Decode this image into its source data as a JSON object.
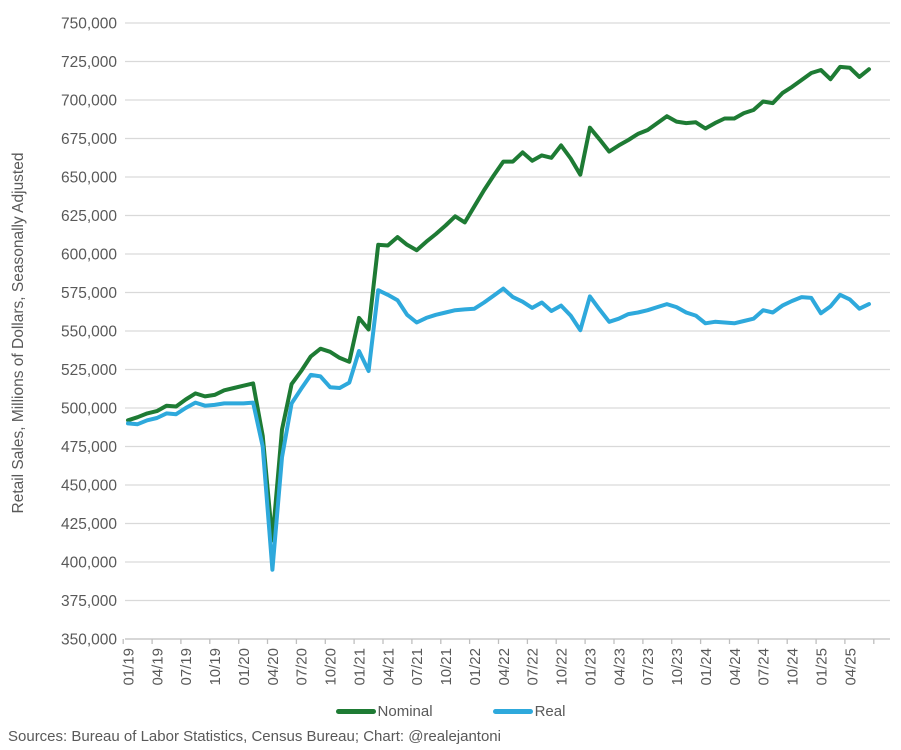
{
  "chart_data": {
    "type": "line",
    "title": "",
    "xlabel": "",
    "ylabel": "Retail Sales, Millions of Dollars, Seasonally Adjusted",
    "ylim": [
      350000,
      750000
    ],
    "y_tick_step": 25000,
    "y_tick_labels": [
      "350,000",
      "375,000",
      "400,000",
      "425,000",
      "450,000",
      "475,000",
      "500,000",
      "525,000",
      "550,000",
      "575,000",
      "600,000",
      "625,000",
      "650,000",
      "675,000",
      "700,000",
      "725,000",
      "750,000"
    ],
    "x_tick_labels": [
      "01/19",
      "04/19",
      "07/19",
      "10/19",
      "01/20",
      "04/20",
      "07/20",
      "10/20",
      "01/21",
      "04/21",
      "07/21",
      "10/21",
      "01/22",
      "04/22",
      "07/22",
      "10/22",
      "01/23",
      "04/23",
      "07/23",
      "10/23",
      "01/24",
      "04/24",
      "07/24",
      "10/24",
      "01/25",
      "04/25"
    ],
    "x_tick_every_n_points": 3,
    "n_points": 78,
    "grid": "horizontal",
    "legend_position": "bottom",
    "series": [
      {
        "name": "Nominal",
        "color": "#1e7b34",
        "values": [
          492000,
          494000,
          496500,
          498000,
          501500,
          501000,
          505500,
          509500,
          507500,
          508500,
          511500,
          513000,
          514500,
          516000,
          482000,
          414000,
          486000,
          515500,
          524000,
          533500,
          538500,
          536500,
          532500,
          530000,
          558500,
          551000,
          606000,
          605500,
          611000,
          606000,
          602500,
          608000,
          613000,
          618500,
          624500,
          620500,
          631000,
          641500,
          651000,
          660000,
          660000,
          666000,
          660500,
          664000,
          662500,
          670500,
          662000,
          651500,
          682000,
          674500,
          666500,
          670500,
          674000,
          678000,
          680500,
          685000,
          689500,
          686000,
          685000,
          685500,
          681500,
          685000,
          688000,
          688000,
          691500,
          693500,
          699000,
          698000,
          704500,
          708500,
          713000,
          717500,
          719500,
          713500,
          721500,
          721000,
          715000,
          720000
        ]
      },
      {
        "name": "Real",
        "color": "#2ea9dc",
        "values": [
          490000,
          489500,
          492000,
          493500,
          496500,
          496000,
          500000,
          503500,
          501500,
          502000,
          503000,
          503000,
          503000,
          503500,
          475000,
          395000,
          468000,
          503000,
          512500,
          521500,
          520500,
          513500,
          513000,
          516500,
          537000,
          524000,
          576500,
          573500,
          570000,
          560500,
          555500,
          558500,
          560500,
          562000,
          563500,
          564000,
          564500,
          568500,
          573000,
          577500,
          572000,
          569000,
          565000,
          568500,
          563000,
          566500,
          560000,
          550500,
          572500,
          564000,
          556000,
          558000,
          561000,
          562000,
          563500,
          565500,
          567500,
          565500,
          562000,
          560000,
          555000,
          556000,
          555500,
          555000,
          556500,
          558000,
          563500,
          562000,
          566500,
          569500,
          572000,
          571500,
          561500,
          566000,
          573500,
          570500,
          564500,
          567500
        ]
      }
    ]
  },
  "legend": {
    "items": [
      {
        "label": "Nominal",
        "color": "#1e7b34"
      },
      {
        "label": "Real",
        "color": "#2ea9dc"
      }
    ]
  },
  "footer": {
    "source": "Sources: Bureau of Labor Statistics, Census Bureau; Chart: @realejantoni"
  },
  "colors": {
    "gridline": "#d9d9d9",
    "axis": "#bfbfbf",
    "tick": "#bfbfbf",
    "text": "#595959",
    "background": "#ffffff"
  }
}
